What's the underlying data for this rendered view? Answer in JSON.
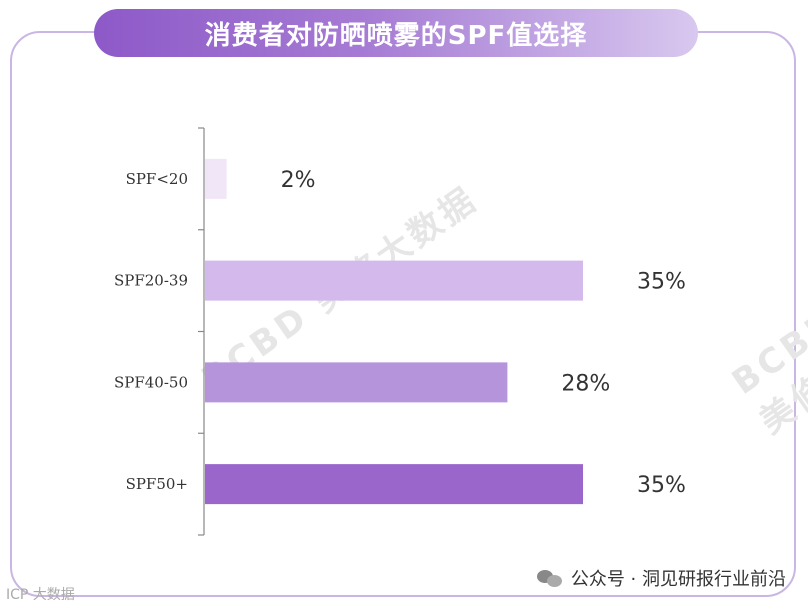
{
  "title": "消费者对防晒喷雾的SPF值选择",
  "watermarks": [
    "BCBD 美修大数据",
    "BCBD 美修"
  ],
  "footer": {
    "source": "公众号 · 洞见研报行业前沿",
    "left_mark": "ICP 大数据"
  },
  "colors": {
    "frame": "#c9b6e4",
    "bars": [
      "#f1e6f7",
      "#d3b9ec",
      "#b594db",
      "#9a66cc"
    ]
  },
  "chart_data": {
    "type": "bar",
    "orientation": "horizontal",
    "categories": [
      "SPF<20",
      "SPF20-39",
      "SPF40-50",
      "SPF50+"
    ],
    "values": [
      2,
      35,
      28,
      35
    ],
    "value_labels": [
      "2%",
      "35%",
      "28%",
      "35%"
    ],
    "unit": "%",
    "xlim": [
      0,
      40
    ],
    "grid": false,
    "legend": "none"
  }
}
